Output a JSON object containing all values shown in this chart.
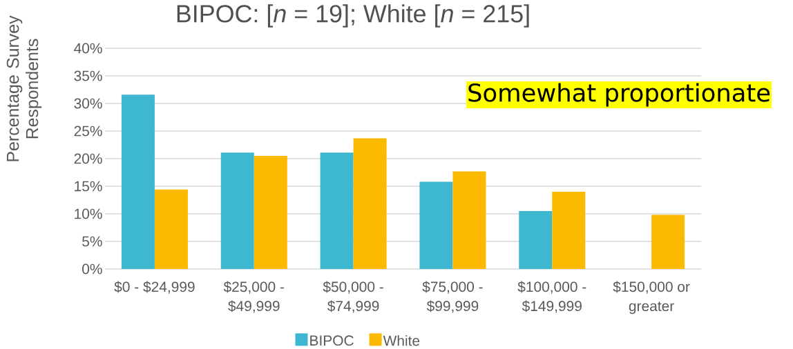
{
  "chart_data": {
    "type": "bar",
    "title": "BIPOC: [*n* = 19]; White [*n* = 215]",
    "ylabel": "Percentage Survey Respondents",
    "categories": [
      "$0 - $24,999",
      "$25,000 - $49,999",
      "$50,000 - $74,999",
      "$75,000 - $99,999",
      "$100,000 - $149,999",
      "$150,000 or greater"
    ],
    "series": [
      {
        "name": "BIPOC",
        "color": "#3eb7d1",
        "values": [
          31.6,
          21.1,
          21.1,
          15.8,
          10.5,
          0
        ]
      },
      {
        "name": "White",
        "color": "#fbb900",
        "values": [
          14.4,
          20.5,
          23.7,
          17.7,
          14.0,
          9.8
        ]
      }
    ],
    "ylim": [
      0,
      40
    ],
    "yticks": [
      {
        "value": 0,
        "label": "0%"
      },
      {
        "value": 5,
        "label": "5%"
      },
      {
        "value": 10,
        "label": "10%"
      },
      {
        "value": 15,
        "label": "15%"
      },
      {
        "value": 20,
        "label": "20%"
      },
      {
        "value": 25,
        "label": "25%"
      },
      {
        "value": 30,
        "label": "30%"
      },
      {
        "value": 35,
        "label": "35%"
      },
      {
        "value": 40,
        "label": "40%"
      }
    ],
    "grid": "y",
    "legend": "bottom",
    "annotations": [
      "Somewhat proportionate"
    ]
  }
}
